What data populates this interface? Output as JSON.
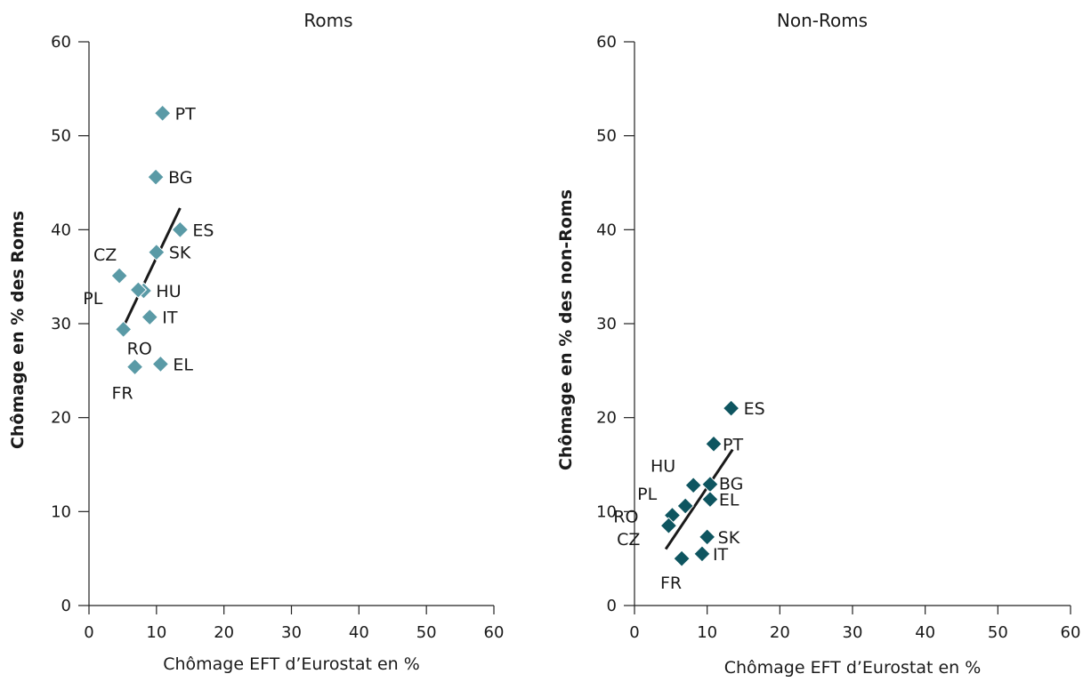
{
  "chart_data": [
    {
      "type": "scatter",
      "title": "Roms",
      "xlabel": "Chômage EFT d’Eurostat en %",
      "ylabel": "Chômage en % des Roms",
      "xlim": [
        0,
        60
      ],
      "ylim": [
        0,
        60
      ],
      "xticks": [
        "0",
        "10",
        "20",
        "30",
        "40",
        "50",
        "60"
      ],
      "yticks": [
        "0",
        "10",
        "20",
        "30",
        "40",
        "50",
        "60"
      ],
      "marker_color": "#5a9aa6",
      "points": [
        {
          "label": "PT",
          "x": 10.9,
          "y": 52.4
        },
        {
          "label": "BG",
          "x": 9.9,
          "y": 45.6
        },
        {
          "label": "ES",
          "x": 13.5,
          "y": 40.0
        },
        {
          "label": "SK",
          "x": 10.0,
          "y": 37.6
        },
        {
          "label": "CZ",
          "x": 4.5,
          "y": 35.1
        },
        {
          "label": "HU",
          "x": 8.1,
          "y": 33.5
        },
        {
          "label": "PL",
          "x": 7.3,
          "y": 33.6
        },
        {
          "label": "IT",
          "x": 9.0,
          "y": 30.7
        },
        {
          "label": "RO",
          "x": 5.1,
          "y": 29.4
        },
        {
          "label": "FR",
          "x": 6.8,
          "y": 25.4
        },
        {
          "label": "EL",
          "x": 10.6,
          "y": 25.7
        }
      ],
      "trendline": {
        "x": [
          5.0,
          13.5
        ],
        "y": [
          29.5,
          42.3
        ]
      }
    },
    {
      "type": "scatter",
      "title": "Non-Roms",
      "xlabel": "Chômage EFT d’Eurostat en %",
      "ylabel": "Chômage en % des non-Roms",
      "xlim": [
        0,
        60
      ],
      "ylim": [
        0,
        60
      ],
      "xticks": [
        "0",
        "10",
        "20",
        "30",
        "40",
        "50",
        "60"
      ],
      "yticks": [
        "0",
        "10",
        "20",
        "30",
        "40",
        "50",
        "60"
      ],
      "marker_color": "#0e5560",
      "points": [
        {
          "label": "ES",
          "x": 13.3,
          "y": 21.0
        },
        {
          "label": "PT",
          "x": 10.9,
          "y": 17.2
        },
        {
          "label": "HU",
          "x": 8.1,
          "y": 12.8
        },
        {
          "label": "BG",
          "x": 10.4,
          "y": 12.9
        },
        {
          "label": "EL",
          "x": 10.4,
          "y": 11.3
        },
        {
          "label": "PL",
          "x": 7.0,
          "y": 10.6
        },
        {
          "label": "RO",
          "x": 5.2,
          "y": 9.6
        },
        {
          "label": "CZ",
          "x": 4.7,
          "y": 8.5
        },
        {
          "label": "SK",
          "x": 10.0,
          "y": 7.3
        },
        {
          "label": "IT",
          "x": 9.3,
          "y": 5.5
        },
        {
          "label": "FR",
          "x": 6.5,
          "y": 5.0
        }
      ],
      "trendline": {
        "x": [
          4.3,
          13.5
        ],
        "y": [
          6.0,
          16.6
        ]
      }
    }
  ]
}
